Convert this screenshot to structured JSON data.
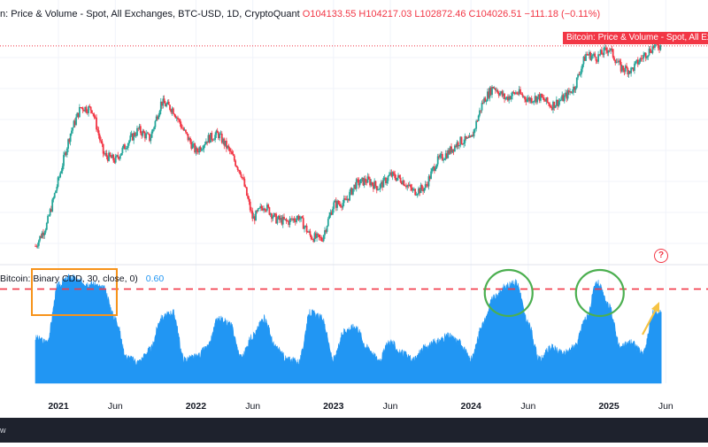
{
  "header": {
    "title": "n: Price & Volume - Spot, All Exchanges, BTC-USD, 1D, CryptoQuant",
    "ohlc": "O104133.55  H104217.03  L102872.46  C104026.51  −111.18 (−0.11%)"
  },
  "price_tag": "Bitcoin: Price & Volume - Spot, All Ex",
  "indicator": {
    "label": "Bitcoin: Binary CDD, 30, close, 0)",
    "value": "0.60"
  },
  "help_button": "?",
  "footer_text": "w",
  "colors": {
    "up": "#26a69a",
    "down": "#f23645",
    "area": "#2196f3",
    "threshold": "#f23645",
    "box": "#f7931a",
    "circle": "#4caf50",
    "arrow": "#f6c343"
  },
  "chart_data": [
    {
      "type": "candlestick",
      "title": "Price & Volume - Spot, All Exchanges, BTC-USD, 1D",
      "xlabel": "",
      "ylabel": "",
      "x_tick_labels": [
        "2021",
        "Jun",
        "2022",
        "Jun",
        "2023",
        "Jun",
        "2024",
        "Jun",
        "2025",
        "Jun"
      ],
      "y_scale": "log",
      "ylim": [
        14000,
        115000
      ],
      "grid": true,
      "series": [
        {
          "x": [
            "2020-11-01",
            "2020-12-01",
            "2021-01-01",
            "2021-02-01",
            "2021-03-01",
            "2021-04-01",
            "2021-05-01",
            "2021-06-01",
            "2021-07-01",
            "2021-08-01",
            "2021-09-01",
            "2021-10-01",
            "2021-11-01",
            "2021-12-01",
            "2022-01-01",
            "2022-02-01",
            "2022-03-01",
            "2022-04-01",
            "2022-05-01",
            "2022-06-01",
            "2022-07-01",
            "2022-08-01",
            "2022-09-01",
            "2022-10-01",
            "2022-11-01",
            "2022-12-01",
            "2023-01-01",
            "2023-02-01",
            "2023-03-01",
            "2023-04-01",
            "2023-05-01",
            "2023-06-01",
            "2023-07-01",
            "2023-08-01",
            "2023-09-01",
            "2023-10-01",
            "2023-11-01",
            "2023-12-01",
            "2024-01-01",
            "2024-02-01",
            "2024-03-01",
            "2024-04-01",
            "2024-05-01",
            "2024-06-01",
            "2024-07-01",
            "2024-08-01",
            "2024-09-01",
            "2024-10-01",
            "2024-11-01",
            "2024-12-01",
            "2025-01-01",
            "2025-02-01",
            "2025-03-01",
            "2025-04-01",
            "2025-05-01"
          ],
          "close": [
            15500,
            19000,
            29000,
            45000,
            58000,
            57000,
            37000,
            35000,
            41000,
            47000,
            43000,
            61000,
            57000,
            46000,
            38000,
            43000,
            45000,
            38000,
            31000,
            20000,
            23000,
            20000,
            19500,
            20500,
            17000,
            16500,
            23000,
            23500,
            28000,
            29000,
            27000,
            30500,
            29200,
            26000,
            27000,
            34500,
            37700,
            42000,
            42500,
            61000,
            71000,
            63000,
            67000,
            62500,
            64000,
            59000,
            63000,
            70000,
            96000,
            93500,
            102000,
            84500,
            82500,
            94000,
            104000
          ]
        }
      ]
    },
    {
      "type": "area",
      "title": "Bitcoin: Binary CDD, 30, close, 0",
      "xlabel": "",
      "ylabel": "",
      "value_label": 0.6,
      "ylim": [
        0,
        1
      ],
      "threshold": 0.8,
      "series": [
        {
          "x": [
            "2020-11-01",
            "2020-12-01",
            "2021-01-01",
            "2021-02-01",
            "2021-03-01",
            "2021-04-01",
            "2021-05-01",
            "2021-06-01",
            "2021-07-01",
            "2021-08-01",
            "2021-09-01",
            "2021-10-01",
            "2021-11-01",
            "2021-12-01",
            "2022-01-01",
            "2022-02-01",
            "2022-03-01",
            "2022-04-01",
            "2022-05-01",
            "2022-06-01",
            "2022-07-01",
            "2022-08-01",
            "2022-09-01",
            "2022-10-01",
            "2022-11-01",
            "2022-12-01",
            "2023-01-01",
            "2023-02-01",
            "2023-03-01",
            "2023-04-01",
            "2023-05-01",
            "2023-06-01",
            "2023-07-01",
            "2023-08-01",
            "2023-09-01",
            "2023-10-01",
            "2023-11-01",
            "2023-12-01",
            "2024-01-01",
            "2024-02-01",
            "2024-03-01",
            "2024-04-01",
            "2024-05-01",
            "2024-06-01",
            "2024-07-01",
            "2024-08-01",
            "2024-09-01",
            "2024-10-01",
            "2024-11-01",
            "2024-12-01",
            "2025-01-01",
            "2025-02-01",
            "2025-03-01",
            "2025-04-01",
            "2025-05-01"
          ],
          "values": [
            0.38,
            0.35,
            0.83,
            0.9,
            0.86,
            0.84,
            0.8,
            0.55,
            0.22,
            0.18,
            0.28,
            0.55,
            0.6,
            0.2,
            0.22,
            0.3,
            0.55,
            0.5,
            0.22,
            0.4,
            0.55,
            0.3,
            0.2,
            0.18,
            0.6,
            0.55,
            0.2,
            0.45,
            0.48,
            0.3,
            0.2,
            0.35,
            0.25,
            0.2,
            0.3,
            0.35,
            0.4,
            0.35,
            0.2,
            0.5,
            0.72,
            0.82,
            0.85,
            0.5,
            0.2,
            0.3,
            0.25,
            0.3,
            0.55,
            0.85,
            0.65,
            0.3,
            0.35,
            0.25,
            0.6
          ]
        }
      ]
    }
  ]
}
